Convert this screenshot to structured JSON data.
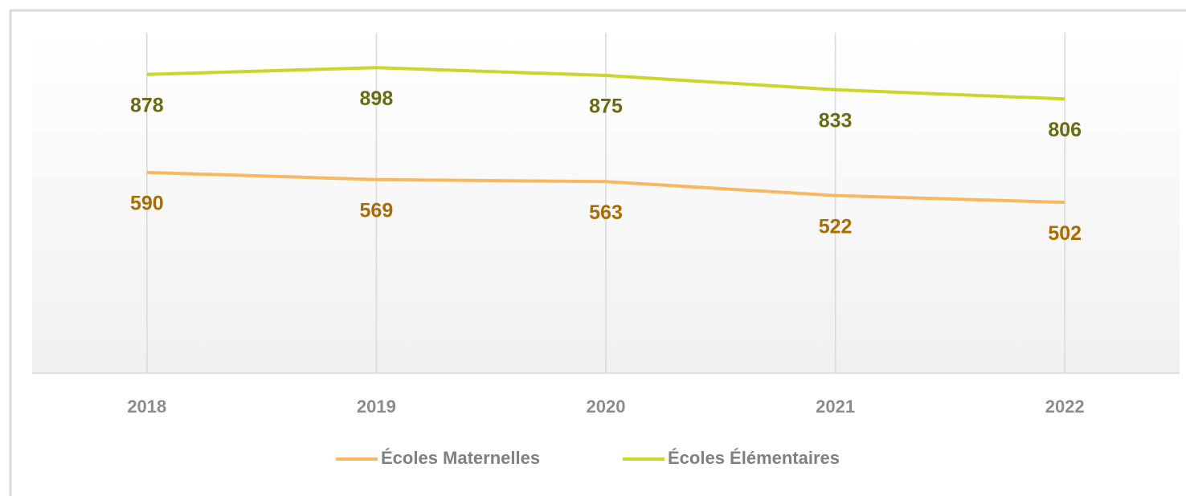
{
  "chart_data": {
    "type": "line",
    "categories": [
      "2018",
      "2019",
      "2020",
      "2021",
      "2022"
    ],
    "series": [
      {
        "name": "Écoles Maternelles",
        "color": "#f8b862",
        "label_color": "#a86c00",
        "values": [
          590,
          569,
          563,
          522,
          502
        ]
      },
      {
        "name": "Écoles Élémentaires",
        "color": "#cbd62c",
        "label_color": "#6a6a12",
        "values": [
          878,
          898,
          875,
          833,
          806
        ]
      }
    ],
    "ylim": [
      0,
      1000
    ],
    "grid": true,
    "legend": "bottom"
  }
}
